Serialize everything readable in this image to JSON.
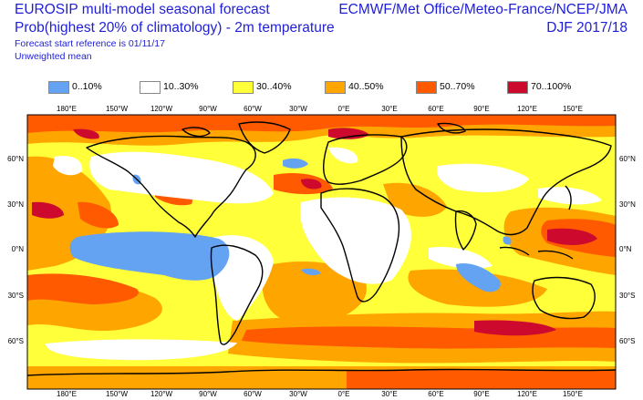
{
  "header": {
    "title_line1": "EUROSIP multi-model seasonal forecast",
    "title_line2": "Prob(highest 20% of climatology) - 2m temperature",
    "forecast_ref": "Forecast start reference is 01/11/17",
    "weighting": "Unweighted mean",
    "centres": "ECMWF/Met Office/Meteo-France/NCEP/JMA",
    "season": "DJF 2017/18"
  },
  "legend": [
    {
      "label": "0..10%",
      "color": "#64a2f2"
    },
    {
      "label": "10..30%",
      "color": "#ffffff"
    },
    {
      "label": "30..40%",
      "color": "#ffff3a"
    },
    {
      "label": "40..50%",
      "color": "#ffa500"
    },
    {
      "label": "50..70%",
      "color": "#ff5a00"
    },
    {
      "label": "70..100%",
      "color": "#cd0a2e"
    }
  ],
  "map": {
    "lon_labels": [
      "180°E",
      "150°W",
      "120°W",
      "90°W",
      "60°W",
      "30°W",
      "0°E",
      "30°E",
      "60°E",
      "90°E",
      "120°E",
      "150°E"
    ],
    "lat_labels": [
      "60°N",
      "30°N",
      "0°N",
      "30°S",
      "60°S"
    ]
  }
}
